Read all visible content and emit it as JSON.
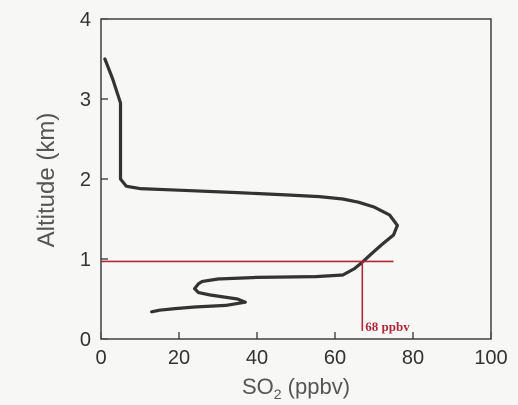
{
  "chart_data": {
    "type": "line",
    "xlabel": "SO",
    "xlabel_subscript": "2",
    "xlabel_units": " (ppbv)",
    "ylabel": "Altitude (km)",
    "xlim": [
      0,
      100
    ],
    "ylim": [
      0,
      4
    ],
    "xticks": [
      "0",
      "20",
      "40",
      "60",
      "80",
      "100"
    ],
    "yticks": [
      "0",
      "1",
      "2",
      "3",
      "4"
    ],
    "grid": false,
    "series": [
      {
        "color": "#333333",
        "points": [
          [
            1,
            3.5
          ],
          [
            3,
            3.25
          ],
          [
            5,
            2.95
          ],
          [
            5,
            2.45
          ],
          [
            5,
            2.0
          ],
          [
            6.5,
            1.91
          ],
          [
            10,
            1.88
          ],
          [
            20,
            1.86
          ],
          [
            35,
            1.83
          ],
          [
            48,
            1.8
          ],
          [
            56,
            1.78
          ],
          [
            62,
            1.75
          ],
          [
            66,
            1.71
          ],
          [
            70,
            1.65
          ],
          [
            74,
            1.55
          ],
          [
            76,
            1.42
          ],
          [
            75,
            1.3
          ],
          [
            72,
            1.18
          ],
          [
            69,
            1.05
          ],
          [
            67,
            0.96
          ],
          [
            65,
            0.88
          ],
          [
            62,
            0.8
          ],
          [
            55,
            0.78
          ],
          [
            40,
            0.77
          ],
          [
            30,
            0.75
          ],
          [
            26,
            0.72
          ],
          [
            25,
            0.69
          ],
          [
            24,
            0.63
          ],
          [
            25,
            0.58
          ],
          [
            28,
            0.55
          ],
          [
            35,
            0.5
          ],
          [
            37,
            0.46
          ],
          [
            32,
            0.42
          ],
          [
            24,
            0.4
          ],
          [
            19,
            0.38
          ],
          [
            15,
            0.36
          ],
          [
            13,
            0.34
          ]
        ]
      }
    ],
    "reference_line": {
      "y": 0.97,
      "x_from": 0,
      "x_to": 75,
      "color": "#b0283a"
    },
    "marker": {
      "x": 67,
      "y_from": 0.97,
      "y_to": 0,
      "color": "#b0283a"
    },
    "annotations": [
      {
        "text": "68 ppbv",
        "color": "#b0283a"
      }
    ]
  }
}
